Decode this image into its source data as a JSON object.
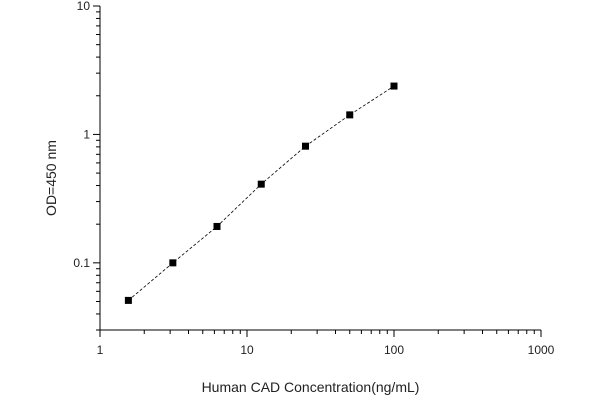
{
  "chart_data": {
    "type": "scatter",
    "title": "",
    "xlabel": "Human CAD Concentration(ng/mL)",
    "ylabel": "OD=450 nm",
    "x_scale": "log",
    "y_scale": "log",
    "xlim": [
      1,
      1000
    ],
    "ylim": [
      0.03,
      10
    ],
    "x_ticks": [
      {
        "value": 1,
        "label": "1"
      },
      {
        "value": 10,
        "label": "10"
      },
      {
        "value": 100,
        "label": "100"
      },
      {
        "value": 1000,
        "label": "1000"
      }
    ],
    "y_ticks": [
      {
        "value": 0.1,
        "label": "0.1"
      },
      {
        "value": 1,
        "label": "1"
      },
      {
        "value": 10,
        "label": "10"
      }
    ],
    "grid": false,
    "series": [
      {
        "x": [
          1.56,
          3.13,
          6.25,
          12.5,
          25,
          50,
          100
        ],
        "y": [
          0.051,
          0.1,
          0.192,
          0.41,
          0.81,
          1.42,
          2.38
        ],
        "marker": "square",
        "line_style": "dashed",
        "color": "#000000"
      }
    ]
  }
}
